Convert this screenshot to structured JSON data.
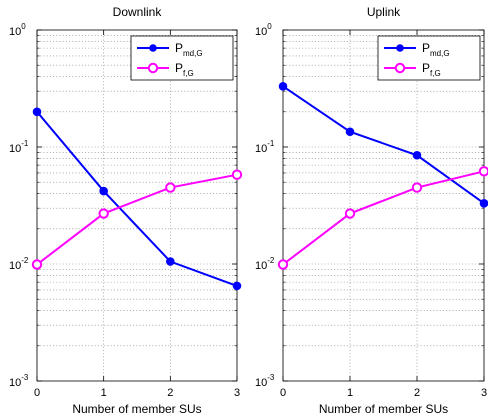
{
  "chart_data": [
    {
      "type": "line",
      "title": "Downlink",
      "xlabel": "Number of member SUs",
      "ylabel": "",
      "yscale": "log",
      "x": [
        0,
        1,
        2,
        3
      ],
      "xlim": [
        0,
        3
      ],
      "ylim": [
        0.001,
        1
      ],
      "xticks": [
        "0",
        "1",
        "2",
        "3"
      ],
      "yticks": [
        {
          "base": "10",
          "exp": "0"
        },
        {
          "base": "10",
          "exp": "-1"
        },
        {
          "base": "10",
          "exp": "-2"
        },
        {
          "base": "10",
          "exp": "-3"
        }
      ],
      "grid": true,
      "legend_position": "top-right",
      "series": [
        {
          "name": "P",
          "sub": "md,G",
          "color": "#0000ff",
          "marker": "dot",
          "values": [
            0.2,
            0.042,
            0.0105,
            0.0065
          ]
        },
        {
          "name": "P",
          "sub": "f,G",
          "color": "#ff00ff",
          "marker": "circle",
          "values": [
            0.0099,
            0.027,
            0.045,
            0.058
          ]
        }
      ]
    },
    {
      "type": "line",
      "title": "Uplink",
      "xlabel": "Number of member SUs",
      "ylabel": "",
      "yscale": "log",
      "x": [
        0,
        1,
        2,
        3
      ],
      "xlim": [
        0,
        3
      ],
      "ylim": [
        0.001,
        1
      ],
      "xticks": [
        "0",
        "1",
        "2",
        "3"
      ],
      "yticks": [
        {
          "base": "10",
          "exp": "0"
        },
        {
          "base": "10",
          "exp": "-1"
        },
        {
          "base": "10",
          "exp": "-2"
        },
        {
          "base": "10",
          "exp": "-3"
        }
      ],
      "grid": true,
      "legend_position": "top-right",
      "series": [
        {
          "name": "P",
          "sub": "md,G",
          "color": "#0000ff",
          "marker": "dot",
          "values": [
            0.33,
            0.135,
            0.085,
            0.033
          ]
        },
        {
          "name": "P",
          "sub": "f,G",
          "color": "#ff00ff",
          "marker": "circle",
          "values": [
            0.0099,
            0.027,
            0.045,
            0.062
          ]
        }
      ]
    }
  ]
}
